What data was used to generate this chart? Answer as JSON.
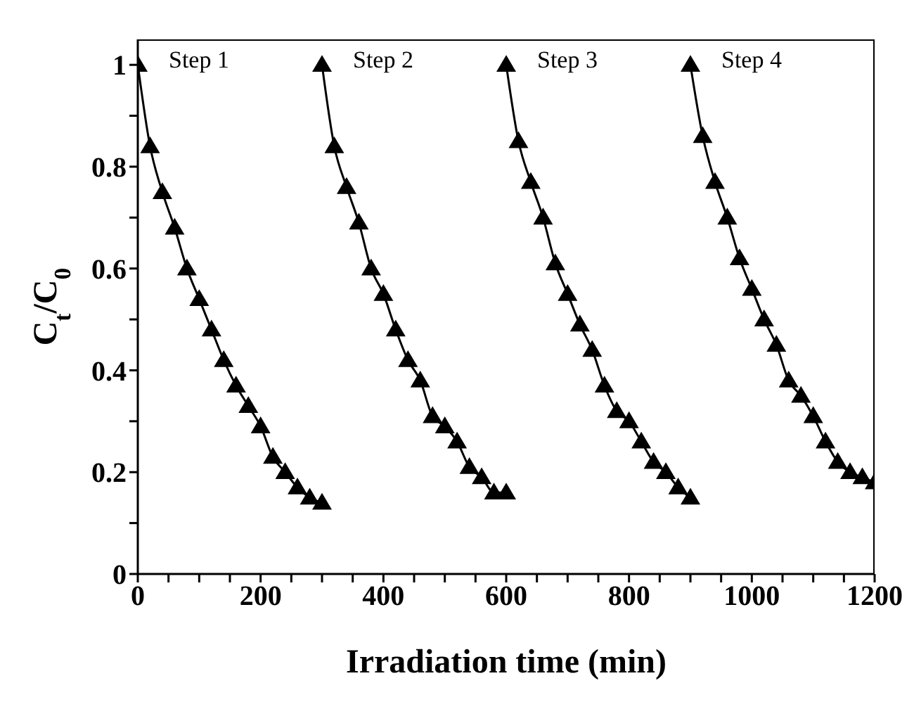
{
  "chart_data": {
    "type": "line",
    "xlabel": "Irradiation time (min)",
    "ylabel": "C$_{t}$/C$_{0}$",
    "marker": "triangle",
    "xlim": [
      0,
      1200
    ],
    "ylim": [
      0,
      1.05
    ],
    "xticks": [
      0,
      {
        "value": 50,
        "label": null
      },
      {
        "value": 100,
        "label": null
      },
      {
        "value": 150,
        "label": null
      },
      200,
      {
        "value": 250,
        "label": null
      },
      {
        "value": 300,
        "label": null
      },
      {
        "value": 350,
        "label": null
      },
      400,
      {
        "value": 450,
        "label": null
      },
      {
        "value": 500,
        "label": null
      },
      {
        "value": 550,
        "label": null
      },
      600,
      {
        "value": 650,
        "label": null
      },
      {
        "value": 700,
        "label": null
      },
      {
        "value": 750,
        "label": null
      },
      800,
      {
        "value": 850,
        "label": null
      },
      {
        "value": 900,
        "label": null
      },
      {
        "value": 950,
        "label": null
      },
      1000,
      {
        "value": 1050,
        "label": null
      },
      {
        "value": 1100,
        "label": null
      },
      {
        "value": 1150,
        "label": null
      },
      1200
    ],
    "yticks": [
      0,
      {
        "value": 0.1,
        "label": null
      },
      0.2,
      {
        "value": 0.3,
        "label": null
      },
      0.4,
      {
        "value": 0.5,
        "label": null
      },
      0.6,
      {
        "value": 0.7,
        "label": null
      },
      0.8,
      {
        "value": 0.9,
        "label": null
      },
      1
    ],
    "series": [
      {
        "color": "#000000",
        "x": [
          0,
          20,
          40,
          60,
          80,
          100,
          120,
          140,
          160,
          180,
          200,
          220,
          240,
          260,
          280,
          300
        ],
        "values": [
          1.0,
          0.84,
          0.75,
          0.68,
          0.6,
          0.54,
          0.48,
          0.42,
          0.37,
          0.33,
          0.29,
          0.23,
          0.2,
          0.17,
          0.15,
          0.14
        ]
      },
      {
        "color": "#000000",
        "x": [
          300,
          320,
          340,
          360,
          380,
          400,
          420,
          440,
          460,
          480,
          500,
          520,
          540,
          560,
          580,
          600
        ],
        "values": [
          1.0,
          0.84,
          0.76,
          0.69,
          0.6,
          0.55,
          0.48,
          0.42,
          0.38,
          0.31,
          0.29,
          0.26,
          0.21,
          0.19,
          0.16,
          0.16
        ]
      },
      {
        "color": "#000000",
        "x": [
          600,
          620,
          640,
          660,
          680,
          700,
          720,
          740,
          760,
          780,
          800,
          820,
          840,
          860,
          880,
          900
        ],
        "values": [
          1.0,
          0.85,
          0.77,
          0.7,
          0.61,
          0.55,
          0.49,
          0.44,
          0.37,
          0.32,
          0.3,
          0.26,
          0.22,
          0.2,
          0.17,
          0.15
        ]
      },
      {
        "color": "#000000",
        "x": [
          900,
          920,
          940,
          960,
          980,
          1000,
          1020,
          1040,
          1060,
          1080,
          1100,
          1120,
          1140,
          1160,
          1180,
          1200
        ],
        "values": [
          1.0,
          0.86,
          0.77,
          0.7,
          0.62,
          0.56,
          0.5,
          0.45,
          0.38,
          0.35,
          0.31,
          0.26,
          0.22,
          0.2,
          0.19,
          0.18
        ]
      }
    ],
    "annotations": [
      {
        "text": "Step 1",
        "x": 0,
        "y": 1
      },
      {
        "text": "Step 2",
        "x": 300,
        "y": 1
      },
      {
        "text": "Step 3",
        "x": 600,
        "y": 1
      },
      {
        "text": "Step 4",
        "x": 900,
        "y": 1
      }
    ]
  }
}
